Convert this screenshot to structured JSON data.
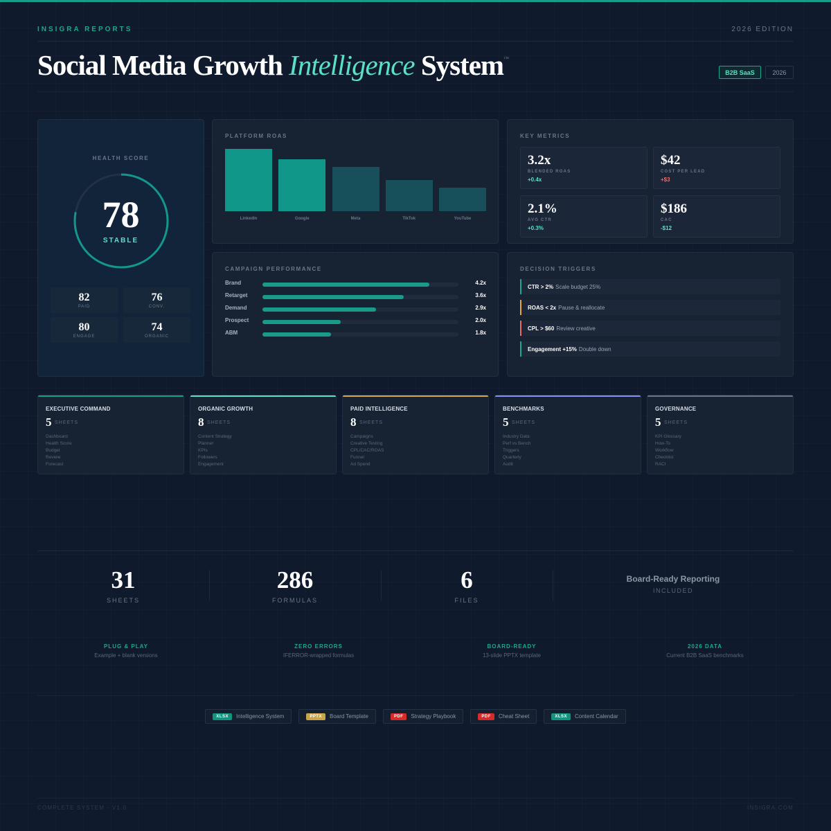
{
  "header": {
    "brand": "INSIGRA REPORTS",
    "edition": "2026 EDITION",
    "title_pre": "Social Media Growth ",
    "title_em": "Intelligence",
    "title_post": " System",
    "tm": "™",
    "tags": [
      "B2B SaaS",
      "2026"
    ]
  },
  "colors": {
    "accent": "#1aa893",
    "accent_light": "#5be0c8",
    "positive": "#5be0c8",
    "negative": "#f06a6a",
    "bar_bright": "#11968a",
    "bar_dark": "#17505a"
  },
  "health": {
    "title": "HEALTH SCORE",
    "score": "78",
    "score_fraction": 0.78,
    "status": "STABLE",
    "subs": [
      {
        "value": "82",
        "label": "PAID"
      },
      {
        "value": "76",
        "label": "CONV."
      },
      {
        "value": "80",
        "label": "ENGAGE"
      },
      {
        "value": "74",
        "label": "ORGANIC"
      }
    ]
  },
  "roas": {
    "title": "PLATFORM ROAS"
  },
  "chart_data": {
    "type": "bar",
    "title": "PLATFORM ROAS",
    "categories": [
      "LinkedIn",
      "Google",
      "Meta",
      "TikTok",
      "YouTube"
    ],
    "values": [
      4.2,
      3.5,
      3.0,
      2.1,
      1.6
    ],
    "ylim": [
      0,
      4.2
    ],
    "grid": false
  },
  "metrics": {
    "title": "KEY METRICS",
    "cards": [
      {
        "value": "3.2x",
        "label": "BLENDED ROAS",
        "delta": "+0.4x",
        "trend": "positive"
      },
      {
        "value": "$42",
        "label": "COST PER LEAD",
        "delta": "+$3",
        "trend": "negative"
      },
      {
        "value": "2.1%",
        "label": "AVG CTR",
        "delta": "+0.3%",
        "trend": "positive"
      },
      {
        "value": "$186",
        "label": "CAC",
        "delta": "-$12",
        "trend": "positive"
      }
    ]
  },
  "campaign": {
    "title": "CAMPAIGN PERFORMANCE",
    "rows": [
      {
        "name": "Brand",
        "value": "4.2x",
        "fraction": 0.85
      },
      {
        "name": "Retarget",
        "value": "3.6x",
        "fraction": 0.72
      },
      {
        "name": "Demand",
        "value": "2.9x",
        "fraction": 0.58
      },
      {
        "name": "Prospect",
        "value": "2.0x",
        "fraction": 0.4
      },
      {
        "name": "ABM",
        "value": "1.8x",
        "fraction": 0.35
      }
    ]
  },
  "triggers": {
    "title": "DECISION TRIGGERS",
    "items": [
      {
        "cond": "CTR > 2%",
        "action": "Scale budget 25%",
        "color": "#1aa893"
      },
      {
        "cond": "ROAS < 2x",
        "action": "Pause & reallocate",
        "color": "#e8a93a"
      },
      {
        "cond": "CPL > $60",
        "action": "Review creative",
        "color": "#f06a6a"
      },
      {
        "cond": "Engagement +15%",
        "action": "Double down",
        "color": "#1aa893"
      }
    ]
  },
  "categories": [
    {
      "title": "EXECUTIVE COMMAND",
      "count": "5",
      "unit": "SHEETS",
      "color": "#169d8a",
      "items": [
        "Dashboard",
        "Health Score",
        "Budget",
        "Review",
        "Forecast"
      ]
    },
    {
      "title": "ORGANIC GROWTH",
      "count": "8",
      "unit": "SHEETS",
      "color": "#5be0c8",
      "items": [
        "Content Strategy",
        "Planner",
        "KPIs",
        "Followers",
        "Engagement"
      ]
    },
    {
      "title": "PAID INTELLIGENCE",
      "count": "8",
      "unit": "SHEETS",
      "color": "#d1a84a",
      "items": [
        "Campaigns",
        "Creative Testing",
        "CPL/CAC/ROAS",
        "Funnel",
        "Ad Spend"
      ]
    },
    {
      "title": "BENCHMARKS",
      "count": "5",
      "unit": "SHEETS",
      "color": "#8b8ff0",
      "items": [
        "Industry Data",
        "Perf vs Bench",
        "Triggers",
        "Quarterly",
        "Audit"
      ]
    },
    {
      "title": "GOVERNANCE",
      "count": "5",
      "unit": "SHEETS",
      "color": "#6c7687",
      "items": [
        "KPI Glossary",
        "How-To",
        "Workflow",
        "Checklist",
        "RACI"
      ]
    }
  ],
  "stats": [
    {
      "value": "31",
      "label": "SHEETS"
    },
    {
      "value": "286",
      "label": "FORMULAS"
    },
    {
      "value": "6",
      "label": "FILES"
    }
  ],
  "board": {
    "title": "Board-Ready Reporting",
    "label": "INCLUDED"
  },
  "features": [
    {
      "title": "PLUG & PLAY",
      "desc": "Example + blank versions"
    },
    {
      "title": "ZERO ERRORS",
      "desc": "IFERROR-wrapped formulas"
    },
    {
      "title": "BOARD-READY",
      "desc": "13-slide PPTX template"
    },
    {
      "title": "2026 DATA",
      "desc": "Current B2B SaaS benchmarks"
    }
  ],
  "files": [
    {
      "badge": "XLSX",
      "name": "Intelligence System",
      "color": "#14937f"
    },
    {
      "badge": "PPTX",
      "name": "Board Template",
      "color": "#c9a54a"
    },
    {
      "badge": "PDF",
      "name": "Strategy Playbook",
      "color": "#d62b2b"
    },
    {
      "badge": "PDF",
      "name": "Cheat Sheet",
      "color": "#d62b2b"
    },
    {
      "badge": "XLSX",
      "name": "Content Calendar",
      "color": "#14937f"
    }
  ],
  "footer": {
    "left": "COMPLETE SYSTEM · V1.0",
    "right": "INSIGRA.COM"
  }
}
